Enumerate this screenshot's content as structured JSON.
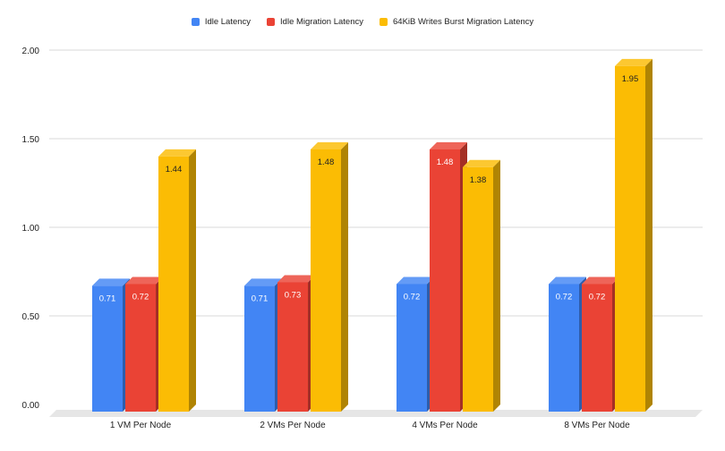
{
  "chart_data": {
    "type": "bar",
    "categories": [
      "1 VM Per Node",
      "2 VMs Per Node",
      "4 VMs Per Node",
      "8 VMs Per Node"
    ],
    "series": [
      {
        "name": "Idle Latency",
        "values": [
          0.71,
          0.71,
          0.72,
          0.72
        ],
        "labels": [
          "0.71",
          "0.71",
          "0.72",
          "0.72"
        ],
        "color": "#4285F4"
      },
      {
        "name": "Idle Migration Latency",
        "values": [
          0.72,
          0.73,
          1.48,
          0.72
        ],
        "labels": [
          "0.72",
          "0.73",
          "1.48",
          "0.72"
        ],
        "color": "#EA4335"
      },
      {
        "name": "64KiB Writes Burst Migration Latency",
        "values": [
          1.44,
          1.48,
          1.38,
          1.95
        ],
        "labels": [
          "1.44",
          "1.48",
          "1.38",
          "1.95"
        ],
        "color": "#FBBC04"
      }
    ],
    "yticks": [
      "0.00",
      "0.50",
      "1.00",
      "1.50",
      "2.00"
    ],
    "ylim": [
      0,
      2.0
    ],
    "grid": true,
    "legend_position": "top-center",
    "style": "3d-bars"
  }
}
